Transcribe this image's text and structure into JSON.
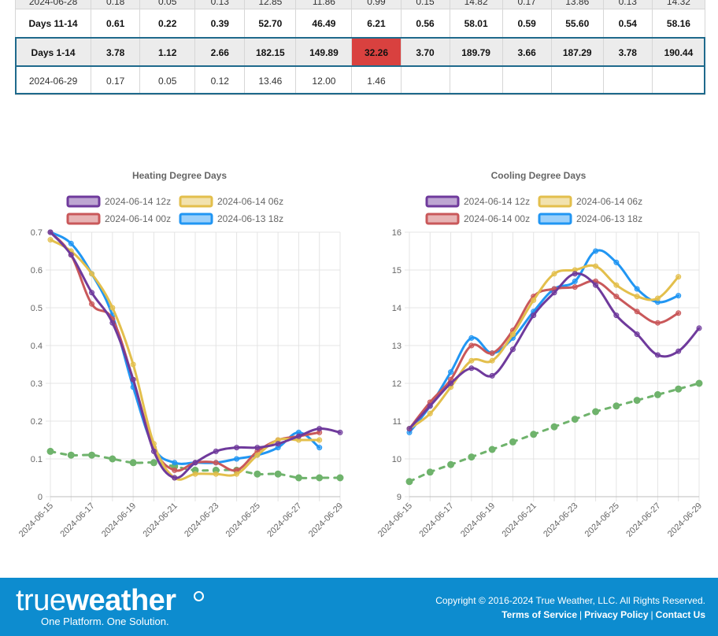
{
  "table": {
    "rows": [
      {
        "cells": [
          "2024-06-28",
          "0.18",
          "0.05",
          "0.13",
          "12.85",
          "11.86",
          "0.99",
          "0.15",
          "14.82",
          "0.17",
          "13.86",
          "0.13",
          "14.32"
        ]
      },
      {
        "cells": [
          "Days 11-14",
          "0.61",
          "0.22",
          "0.39",
          "52.70",
          "46.49",
          "6.21",
          "0.56",
          "58.01",
          "0.59",
          "55.60",
          "0.54",
          "58.16"
        ]
      },
      {
        "cells": [
          "Days 1-14",
          "3.78",
          "1.12",
          "2.66",
          "182.15",
          "149.89",
          "32.26",
          "3.70",
          "189.79",
          "3.66",
          "187.29",
          "3.78",
          "190.44"
        ]
      },
      {
        "cells": [
          "2024-06-29",
          "0.17",
          "0.05",
          "0.12",
          "13.46",
          "12.00",
          "1.46",
          "",
          "",
          "",
          "",
          "",
          ""
        ]
      }
    ],
    "highlight_color": "#d9413f"
  },
  "chart_data": [
    {
      "type": "line",
      "title": "Heating Degree Days",
      "x": [
        "2024-06-15",
        "2024-06-16",
        "2024-06-17",
        "2024-06-18",
        "2024-06-19",
        "2024-06-20",
        "2024-06-21",
        "2024-06-22",
        "2024-06-23",
        "2024-06-24",
        "2024-06-25",
        "2024-06-26",
        "2024-06-27",
        "2024-06-28",
        "2024-06-29"
      ],
      "xticks": [
        "2024-06-15",
        "2024-06-17",
        "2024-06-19",
        "2024-06-21",
        "2024-06-23",
        "2024-06-25",
        "2024-06-27",
        "2024-06-29"
      ],
      "ylim": [
        0,
        0.7
      ],
      "yticks": [
        "0",
        "0.1",
        "0.2",
        "0.3",
        "0.4",
        "0.5",
        "0.6",
        "0.7"
      ],
      "ytick_values": [
        0,
        0.1,
        0.2,
        0.3,
        0.4,
        0.5,
        0.6,
        0.7
      ],
      "series": [
        {
          "name": "2024-06-14 12z",
          "color": "#6f3a9c",
          "values": [
            0.7,
            0.64,
            0.54,
            0.46,
            0.31,
            0.12,
            0.05,
            0.09,
            0.12,
            0.13,
            0.13,
            0.14,
            0.16,
            0.18,
            0.17
          ]
        },
        {
          "name": "2024-06-14 06z",
          "color": "#e3bf4c",
          "values": [
            0.68,
            0.65,
            0.59,
            0.5,
            0.35,
            0.14,
            0.05,
            0.06,
            0.06,
            0.06,
            0.11,
            0.15,
            0.15,
            0.15,
            null
          ]
        },
        {
          "name": "2024-06-14 00z",
          "color": "#c9585a",
          "values": [
            0.7,
            0.64,
            0.51,
            0.47,
            0.31,
            0.13,
            0.07,
            0.09,
            0.09,
            0.07,
            0.12,
            0.15,
            0.16,
            0.17,
            null
          ]
        },
        {
          "name": "2024-06-13 18z",
          "color": "#2196f3",
          "values": [
            0.7,
            0.67,
            0.59,
            0.48,
            0.29,
            0.13,
            0.09,
            0.09,
            0.09,
            0.1,
            0.11,
            0.13,
            0.17,
            0.13,
            null
          ]
        },
        {
          "name": "",
          "color": "#6fb36c",
          "dashed": true,
          "values": [
            0.12,
            0.11,
            0.11,
            0.1,
            0.09,
            0.09,
            0.08,
            0.07,
            0.07,
            0.07,
            0.06,
            0.06,
            0.05,
            0.05,
            0.05
          ]
        }
      ],
      "legend": "top",
      "grid": true
    },
    {
      "type": "line",
      "title": "Cooling Degree Days",
      "x": [
        "2024-06-15",
        "2024-06-16",
        "2024-06-17",
        "2024-06-18",
        "2024-06-19",
        "2024-06-20",
        "2024-06-21",
        "2024-06-22",
        "2024-06-23",
        "2024-06-24",
        "2024-06-25",
        "2024-06-26",
        "2024-06-27",
        "2024-06-28",
        "2024-06-29"
      ],
      "xticks": [
        "2024-06-15",
        "2024-06-17",
        "2024-06-19",
        "2024-06-21",
        "2024-06-23",
        "2024-06-25",
        "2024-06-27",
        "2024-06-29"
      ],
      "ylim": [
        9,
        16
      ],
      "yticks": [
        "9",
        "10",
        "11",
        "12",
        "13",
        "14",
        "15",
        "16"
      ],
      "ytick_values": [
        9,
        10,
        11,
        12,
        13,
        14,
        15,
        16
      ],
      "series": [
        {
          "name": "2024-06-14 12z",
          "color": "#6f3a9c",
          "values": [
            10.8,
            11.4,
            12.0,
            12.4,
            12.2,
            12.9,
            13.8,
            14.4,
            14.9,
            14.6,
            13.8,
            13.3,
            12.75,
            12.85,
            13.46
          ]
        },
        {
          "name": "2024-06-14 06z",
          "color": "#e3bf4c",
          "values": [
            10.8,
            11.2,
            11.9,
            12.6,
            12.6,
            13.3,
            14.2,
            14.9,
            15.0,
            15.1,
            14.6,
            14.3,
            14.25,
            14.82,
            null
          ]
        },
        {
          "name": "2024-06-14 00z",
          "color": "#c9585a",
          "values": [
            10.8,
            11.5,
            12.1,
            13.0,
            12.8,
            13.4,
            14.3,
            14.5,
            14.55,
            14.7,
            14.3,
            13.9,
            13.6,
            13.86,
            null
          ]
        },
        {
          "name": "2024-06-13 18z",
          "color": "#2196f3",
          "values": [
            10.7,
            11.4,
            12.3,
            13.2,
            12.8,
            13.2,
            13.9,
            14.5,
            14.7,
            15.5,
            15.2,
            14.5,
            14.15,
            14.32,
            null
          ]
        },
        {
          "name": "",
          "color": "#6fb36c",
          "dashed": true,
          "values": [
            9.4,
            9.65,
            9.85,
            10.05,
            10.25,
            10.45,
            10.65,
            10.85,
            11.05,
            11.25,
            11.4,
            11.55,
            11.7,
            11.85,
            12.0
          ]
        }
      ],
      "legend": "top",
      "grid": true
    }
  ],
  "footer": {
    "logo_part1": "true",
    "logo_part2": "weather",
    "tagline": "One Platform. One Solution.",
    "copyright": "Copyright © 2016-2024 True Weather, LLC. All Rights Reserved.",
    "links": [
      "Terms of Service",
      "Privacy Policy",
      "Contact Us"
    ],
    "bg_color": "#0d8ccf"
  }
}
